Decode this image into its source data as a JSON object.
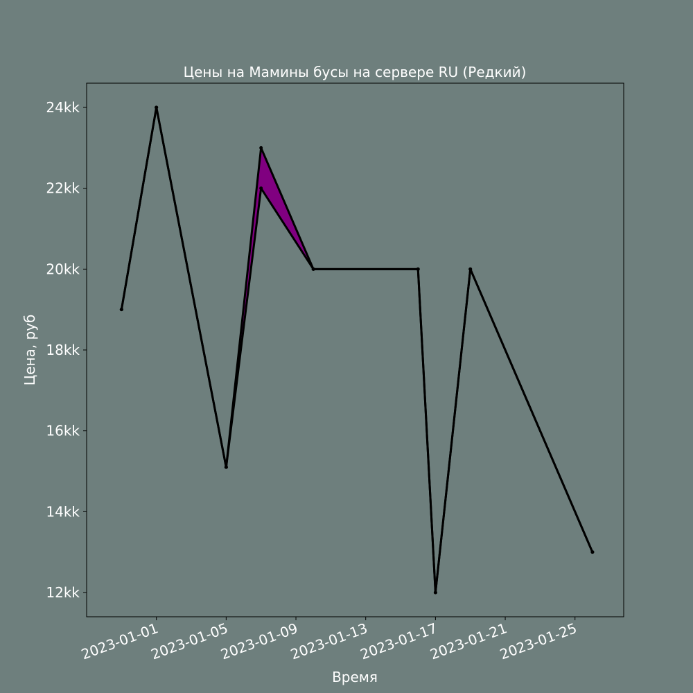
{
  "chart_data": {
    "type": "line",
    "title": "Цены на Мамины бусы на сервере RU (Редкий)",
    "xlabel": "Время",
    "ylabel": "Цена, руб",
    "x_ticks": [
      "2023-01-01",
      "2023-01-05",
      "2023-01-09",
      "2023-01-13",
      "2023-01-17",
      "2023-01-21",
      "2023-01-25"
    ],
    "y_ticks": [
      {
        "value": 12000,
        "label": "12kk"
      },
      {
        "value": 14000,
        "label": "14kk"
      },
      {
        "value": 16000,
        "label": "16kk"
      },
      {
        "value": 18000,
        "label": "18kk"
      },
      {
        "value": 20000,
        "label": "20kk"
      },
      {
        "value": 22000,
        "label": "22kk"
      },
      {
        "value": 24000,
        "label": "24kk"
      }
    ],
    "xlim": [
      "2022-12-28",
      "2023-01-27T19:00"
    ],
    "ylim": [
      11400,
      24600
    ],
    "grid": false,
    "series": [
      {
        "points": [
          {
            "x": "2022-12-30",
            "y": 19000
          },
          {
            "x": "2023-01-01",
            "y": 24000
          },
          {
            "x": "2023-01-05",
            "y": 15100
          },
          {
            "x": "2023-01-07",
            "y": 23000
          },
          {
            "x": "2023-01-10",
            "y": 20000
          },
          {
            "x": "2023-01-16",
            "y": 20000
          },
          {
            "x": "2023-01-17",
            "y": 12000
          },
          {
            "x": "2023-01-19",
            "y": 20000
          },
          {
            "x": "2023-01-26",
            "y": 13000
          }
        ]
      },
      {
        "points": [
          {
            "x": "2022-12-30",
            "y": 19000
          },
          {
            "x": "2023-01-01",
            "y": 24000
          },
          {
            "x": "2023-01-05",
            "y": 15100
          },
          {
            "x": "2023-01-07",
            "y": 22000
          },
          {
            "x": "2023-01-10",
            "y": 20000
          },
          {
            "x": "2023-01-16",
            "y": 20000
          },
          {
            "x": "2023-01-17",
            "y": 12000
          },
          {
            "x": "2023-01-19",
            "y": 20000
          },
          {
            "x": "2023-01-26",
            "y": 13000
          }
        ]
      }
    ],
    "fill_between": true,
    "colors": {
      "background": "#6e7f7d",
      "line": "#000000",
      "fill": "#800080",
      "text": "#ffffff"
    }
  }
}
